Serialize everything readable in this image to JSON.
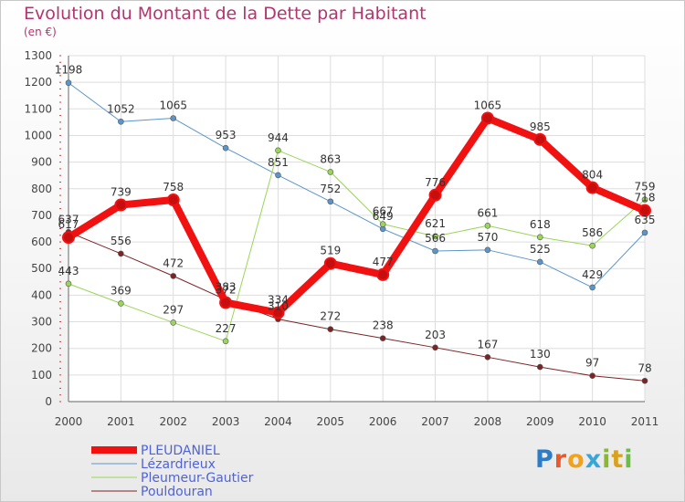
{
  "title": "Evolution du Montant de la Dette par Habitant",
  "subtitle": "(en €)",
  "logo": {
    "letters": [
      "P",
      "r",
      "o",
      "x",
      "i",
      "t",
      "i"
    ],
    "colors": [
      "#2b7dc9",
      "#e8592b",
      "#f2a11b",
      "#3aa6d8",
      "#89b931",
      "#d8a21f",
      "#6bbd45"
    ]
  },
  "chart_data": {
    "type": "line",
    "x": [
      2000,
      2001,
      2002,
      2003,
      2004,
      2005,
      2006,
      2007,
      2008,
      2009,
      2010,
      2011
    ],
    "ylim": [
      0,
      1300
    ],
    "yticks": [
      0,
      100,
      200,
      300,
      400,
      500,
      600,
      700,
      800,
      900,
      1000,
      1100,
      1200,
      1300
    ],
    "grid": true,
    "legend_position": "bottom-left",
    "series": [
      {
        "name": "Lézardrieux",
        "color": "#5c95c8",
        "width": 1,
        "values": [
          1198,
          1052,
          1065,
          953,
          851,
          752,
          649,
          566,
          570,
          525,
          429,
          635
        ],
        "labels": [
          "1198",
          "1052",
          "1065",
          "953",
          "851",
          "752",
          "649",
          "566",
          "570",
          "525",
          "429",
          "635"
        ]
      },
      {
        "name": "Pleumeur-Gautier",
        "color": "#9bd55a",
        "width": 1,
        "values": [
          443,
          369,
          297,
          227,
          944,
          863,
          667,
          621,
          661,
          618,
          586,
          759
        ],
        "labels": [
          "443",
          "369",
          "297",
          "227",
          "944",
          "863",
          "667",
          "621",
          "661",
          "618",
          "586",
          "759"
        ]
      },
      {
        "name": "Pouldouran",
        "color": "#7a2426",
        "width": 1,
        "values": [
          637,
          556,
          472,
          383,
          310,
          272,
          238,
          203,
          167,
          130,
          97,
          78
        ],
        "labels": [
          "637",
          "556",
          "472",
          "383",
          "310",
          "272",
          "238",
          "203",
          "167",
          "130",
          "97",
          "78"
        ]
      },
      {
        "name": "PLEUDANIEL",
        "color": "#f11111",
        "width": 8,
        "values": [
          617,
          739,
          758,
          372,
          334,
          519,
          477,
          776,
          1065,
          985,
          804,
          718
        ],
        "labels": [
          "617",
          "739",
          "758",
          "372",
          "334",
          "519",
          "477",
          "776",
          "1065",
          "985",
          "804",
          "718"
        ]
      }
    ],
    "legend_order": [
      "PLEUDANIEL",
      "Lézardrieux",
      "Pleumeur-Gautier",
      "Pouldouran"
    ]
  }
}
